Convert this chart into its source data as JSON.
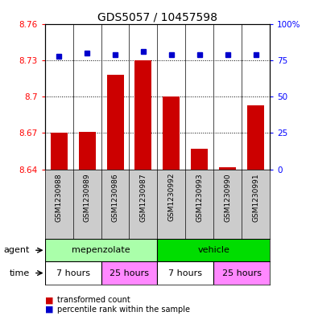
{
  "title": "GDS5057 / 10457598",
  "samples": [
    "GSM1230988",
    "GSM1230989",
    "GSM1230986",
    "GSM1230987",
    "GSM1230992",
    "GSM1230993",
    "GSM1230990",
    "GSM1230991"
  ],
  "bar_values": [
    8.67,
    8.671,
    8.718,
    8.73,
    8.7,
    8.657,
    8.642,
    8.693
  ],
  "percentile_values": [
    78,
    80,
    79,
    81,
    79,
    79,
    79,
    79
  ],
  "ymin": 8.64,
  "ymax": 8.76,
  "yticks": [
    8.64,
    8.67,
    8.7,
    8.73,
    8.76
  ],
  "ytick_labels": [
    "8.64",
    "8.67",
    "8.7",
    "8.73",
    "8.76"
  ],
  "right_yticks": [
    0,
    25,
    50,
    75,
    100
  ],
  "right_ytick_labels": [
    "0",
    "25",
    "50",
    "75",
    "100%"
  ],
  "bar_color": "#cc0000",
  "percentile_color": "#0000cc",
  "bar_width": 0.6,
  "agent_labels": [
    {
      "text": "mepenzolate",
      "start": 0,
      "end": 4,
      "color": "#aaffaa"
    },
    {
      "text": "vehicle",
      "start": 4,
      "end": 8,
      "color": "#00dd00"
    }
  ],
  "time_labels": [
    {
      "text": "7 hours",
      "start": 0,
      "end": 2,
      "color": "#ffffff"
    },
    {
      "text": "25 hours",
      "start": 2,
      "end": 4,
      "color": "#ff88ff"
    },
    {
      "text": "7 hours",
      "start": 4,
      "end": 6,
      "color": "#ffffff"
    },
    {
      "text": "25 hours",
      "start": 6,
      "end": 8,
      "color": "#ff88ff"
    }
  ],
  "legend_items": [
    {
      "label": "transformed count",
      "color": "#cc0000"
    },
    {
      "label": "percentile rank within the sample",
      "color": "#0000cc"
    }
  ],
  "xlabel_agent": "agent",
  "xlabel_time": "time",
  "tick_area_bg": "#cccccc",
  "background_color": "#ffffff"
}
